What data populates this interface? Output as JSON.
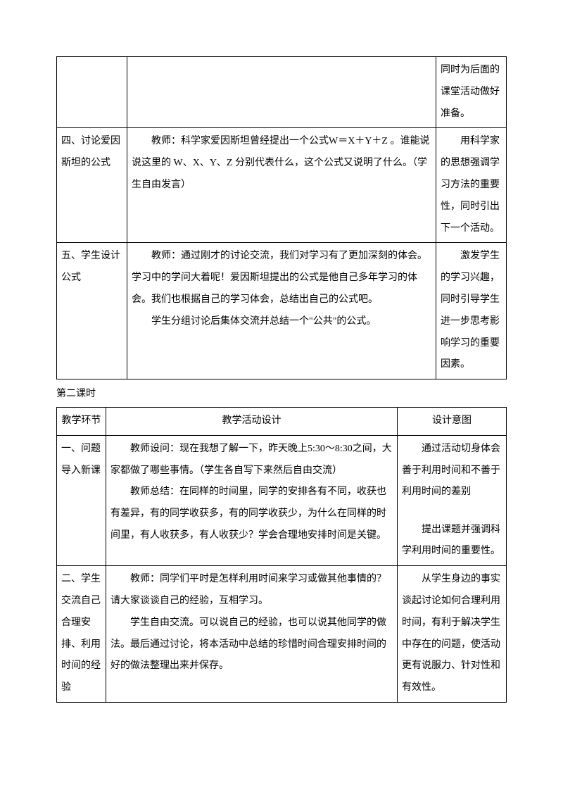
{
  "table1": {
    "row1_col1": "",
    "row1_col2": "",
    "row1_col3": "同时为后面的课堂活动做好准备。",
    "row2_col1": "四、讨论爱因斯坦的公式",
    "row2_col2": "教师：科学家爱因斯坦曾经提出一个公式W＝X＋Y＋Z 。谁能说说这里的 W、X、Y、Z 分别代表什么，这个公式又说明了什么。（学生自由发言）",
    "row2_col3": "用科学家的思想强调学习方法的重要性，同时引出下一个活动。",
    "row3_col1": "五、学生设计公式",
    "row3_col2_p1": "教师：通过刚才的讨论交流，我们对学习有了更加深刻的体会。学习中的学问大着呢！爱因斯坦提出的公式是他自己多年学习的体会。我们也根据自己的学习体会，总结出自己的公式吧。",
    "row3_col2_p2": "学生分组讨论后集体交流并总结一个\"公共\"的公式。",
    "row3_col3": "激发学生的学习兴趣，同时引导学生进一步思考影响学习的重要因素。"
  },
  "section2_title": "第二课时",
  "table2": {
    "header_col1": "教学环节",
    "header_col2": "教学活动设计",
    "header_col3": "设计意图",
    "row1_col1": "一、问题导入新课",
    "row1_col2_p1": "教师设问：现在我想了解一下，昨天晚上5:30～8:30之间，大家都做了哪些事情。（学生各自写下来然后自由交流）",
    "row1_col2_p2": "教师总结：在同样的时间里，同学的安排各有不同，收获也有差异，有的同学收获多，有的同学收获少，为什么在同样的时间里，有人收获多，有人收获少？学会合理地安排时间是关键。",
    "row1_col3_p1": "通过活动切身体会善于利用时间和不善于利用时间的差别",
    "row1_col3_p2": "提出课题并强调科学利用时间的重要性。",
    "row2_col1": "二、学生交流自己合理安排、利用时间的经验",
    "row2_col2_p1": "教师：同学们平时是怎样利用时间来学习或做其他事情的？请大家谈谈自己的经验，互相学习。",
    "row2_col2_p2": "学生自由交流。可以说自己的经验，也可以说其他同学的做法。最后通过讨论，将本活动中总结的珍惜时间合理安排时间的好的做法整理出来并保存。",
    "row2_col3": "从学生身边的事实谈起讨论如何合理利用时间，有利于解决学生中存在的问题，使活动更有说服力、针对性和有效性。"
  }
}
